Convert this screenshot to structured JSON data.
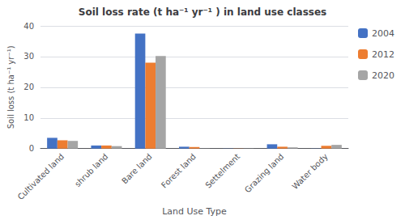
{
  "chart_data": {
    "type": "bar",
    "title": "Soil loss rate (t ha⁻¹ yr⁻¹ ) in land use classes",
    "x_label": "Land Use Type",
    "y_label": "Soil loss (t ha⁻¹ yr⁻¹)",
    "categories": [
      "Cultivated land",
      "shrub land",
      "Bare land",
      "Forest land",
      "Settelment",
      "Grazing land",
      "Water body"
    ],
    "series": [
      {
        "name": "2004",
        "color": "#4472C4",
        "values": [
          3.5,
          1.0,
          37.5,
          0.6,
          0.05,
          1.4,
          0.05
        ]
      },
      {
        "name": "2012",
        "color": "#ED7D31",
        "values": [
          2.7,
          1.0,
          28.0,
          0.5,
          0.05,
          0.6,
          0.9
        ]
      },
      {
        "name": "2020",
        "color": "#A5A5A5",
        "values": [
          2.5,
          0.8,
          30.2,
          0.05,
          0.05,
          0.4,
          1.2
        ]
      }
    ],
    "ylim": [
      0,
      40
    ],
    "yticks": [
      0,
      10,
      20,
      30,
      40
    ],
    "grid": true,
    "legend": "right"
  }
}
